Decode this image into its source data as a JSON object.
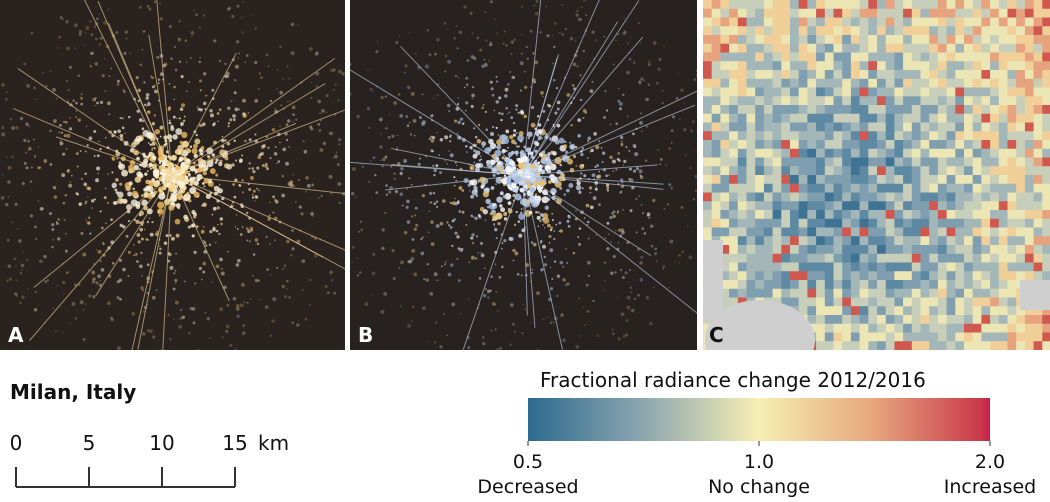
{
  "panels": {
    "labels": [
      "A",
      "B",
      "C"
    ]
  },
  "location": "Milan, Italy",
  "scale_bar": {
    "ticks": [
      0,
      5,
      10,
      15
    ],
    "unit": "km"
  },
  "colorbar": {
    "title": "Fractional radiance change 2012/2016",
    "lim": [
      0.5,
      2
    ],
    "log": true,
    "ticks": [
      {
        "value": 0.5,
        "label": "0.5"
      },
      {
        "value": 1,
        "label": "1.0"
      },
      {
        "value": 2,
        "label": "2.0"
      }
    ],
    "captions": [
      "Decreased",
      "No change",
      "Increased"
    ]
  }
}
